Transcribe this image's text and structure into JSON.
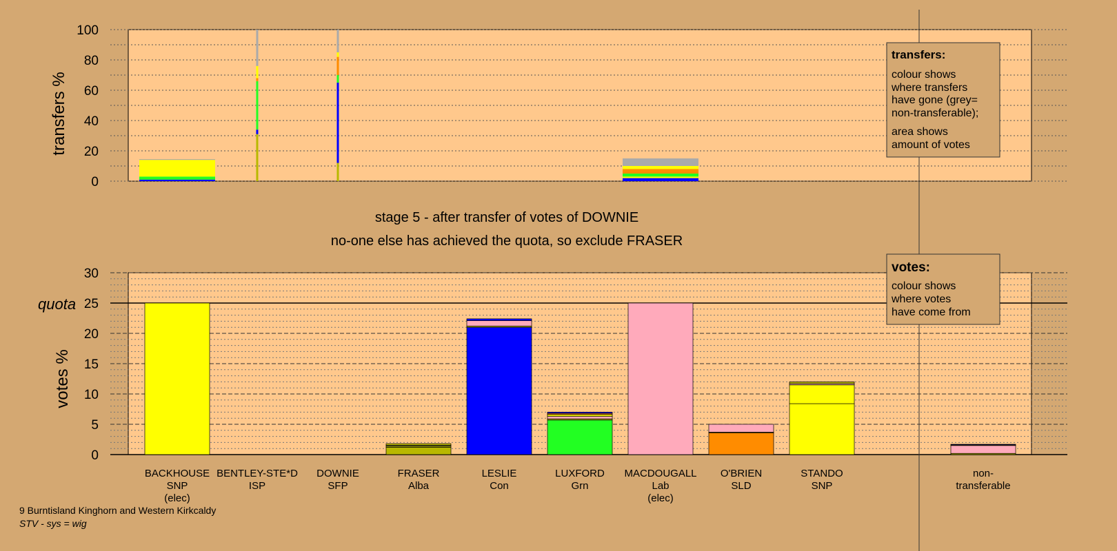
{
  "colors": {
    "background": "#d4a872",
    "plot_bg": "#ffc88c",
    "SNP": "#ffff00",
    "ISP": "#b8b800",
    "SFP": "#b8b800",
    "Alba": "#b8b800",
    "Con": "#0000ff",
    "Grn": "#22ff22",
    "Lab": "#ffaabb",
    "SLD": "#ff8c00",
    "nontransferable": "#aaaaaa"
  },
  "chart_data": [
    {
      "type": "bar",
      "name": "transfers",
      "ylabel": "transfers %",
      "ylim": [
        0,
        100
      ],
      "yticks": [
        "0",
        "20",
        "40",
        "60",
        "80",
        "100"
      ],
      "grid": true,
      "legend": {
        "title": "transfers:",
        "lines1": [
          "colour shows",
          "where transfers",
          "have gone (grey=",
          "non-transferable);"
        ],
        "lines2": [
          "area shows",
          "amount of votes"
        ],
        "placement": "top-right"
      },
      "columns": [
        {
          "candidate": "BACKHOUSE",
          "width_units": 1,
          "segments": [
            {
              "party": "Con",
              "value": 1
            },
            {
              "party": "Grn",
              "value": 2
            },
            {
              "party": "SNP",
              "value": 11
            },
            {
              "party": "nontransferable",
              "value": 0.5
            }
          ]
        },
        {
          "candidate": "BENTLEY-STE*D",
          "width_units": 0.02,
          "segments": [
            {
              "party": "Alba",
              "value": 31
            },
            {
              "party": "Con",
              "value": 3
            },
            {
              "party": "Grn",
              "value": 32
            },
            {
              "party": "SLD",
              "value": 2
            },
            {
              "party": "SNP",
              "value": 8
            },
            {
              "party": "nontransferable",
              "value": 24
            }
          ]
        },
        {
          "candidate": "DOWNIE",
          "width_units": 0.02,
          "segments": [
            {
              "party": "Alba",
              "value": 12
            },
            {
              "party": "Con",
              "value": 53
            },
            {
              "party": "Grn",
              "value": 5
            },
            {
              "party": "SLD",
              "value": 12
            },
            {
              "party": "SNP",
              "value": 3
            },
            {
              "party": "nontransferable",
              "value": 15
            }
          ]
        },
        {
          "candidate": "MACDOUGALL",
          "width_units": 1,
          "segments": [
            {
              "party": "Con",
              "value": 2
            },
            {
              "party": "SNP",
              "value": 1
            },
            {
              "party": "Grn",
              "value": 2
            },
            {
              "party": "SLD",
              "value": 3
            },
            {
              "party": "SNP",
              "value": 2
            },
            {
              "party": "nontransferable",
              "value": 5
            }
          ]
        }
      ]
    },
    {
      "type": "bar",
      "name": "votes",
      "ylabel": "votes %",
      "ylim": [
        0,
        30
      ],
      "yticks": [
        "0",
        "5",
        "10",
        "15",
        "20",
        "25",
        "30"
      ],
      "quota": 25,
      "quota_label": "quota",
      "grid": true,
      "legend": {
        "title": "votes:",
        "lines": [
          "colour shows",
          "where votes",
          "have come from"
        ],
        "placement": "top-right"
      },
      "candidates": [
        {
          "name": "BACKHOUSE",
          "party": "SNP",
          "status": "(elec)",
          "segments": [
            {
              "party": "SNP",
              "value": 25
            }
          ]
        },
        {
          "name": "BENTLEY-STE*D",
          "party": "ISP",
          "status": "",
          "segments": []
        },
        {
          "name": "DOWNIE",
          "party": "SFP",
          "status": "",
          "segments": []
        },
        {
          "name": "FRASER",
          "party": "Alba",
          "status": "",
          "segments": [
            {
              "party": "Alba",
              "value": 1.2
            },
            {
              "party": "ISP",
              "value": 0.2
            },
            {
              "party": "Con",
              "value": 0.1
            },
            {
              "party": "SFP",
              "value": 0.3
            }
          ]
        },
        {
          "name": "LESLIE",
          "party": "Con",
          "status": "",
          "segments": [
            {
              "party": "Con",
              "value": 21
            },
            {
              "party": "SFP",
              "value": 0.2
            },
            {
              "party": "Lab",
              "value": 0.9
            },
            {
              "party": "Con",
              "value": 0.3
            }
          ]
        },
        {
          "name": "LUXFORD",
          "party": "Grn",
          "status": "",
          "segments": [
            {
              "party": "Grn",
              "value": 5.7
            },
            {
              "party": "SFP",
              "value": 0.2
            },
            {
              "party": "Lab",
              "value": 0.4
            },
            {
              "party": "SNP",
              "value": 0.3
            },
            {
              "party": "SLD",
              "value": 0.2
            },
            {
              "party": "Con",
              "value": 0.2
            }
          ]
        },
        {
          "name": "MACDOUGALL",
          "party": "Lab",
          "status": "(elec)",
          "segments": [
            {
              "party": "Lab",
              "value": 25
            }
          ]
        },
        {
          "name": "O'BRIEN",
          "party": "SLD",
          "status": "",
          "segments": [
            {
              "party": "SLD",
              "value": 3.6
            },
            {
              "party": "SFP",
              "value": 0.1
            },
            {
              "party": "Lab",
              "value": 1.3
            }
          ]
        },
        {
          "name": "STANDO",
          "party": "SNP",
          "status": "",
          "segments": [
            {
              "party": "SNP",
              "value": 8.4
            },
            {
              "party": "SNP",
              "value": 3.1
            },
            {
              "party": "Lab",
              "value": 0.2
            },
            {
              "party": "SFP",
              "value": 0.3
            }
          ]
        }
      ],
      "nontransferable": {
        "label1": "non-",
        "label2": "transferable",
        "segments": [
          {
            "party": "SFP",
            "value": 0.2
          },
          {
            "party": "Lab",
            "value": 1.3
          },
          {
            "party": "SNP",
            "value": 0.1
          },
          {
            "party": "Con",
            "value": 0.1
          }
        ]
      }
    }
  ],
  "stage_line1": "stage 5 - after transfer of votes of DOWNIE",
  "stage_line2": "no-one else has achieved the quota, so exclude FRASER",
  "footer_ward": "9 Burntisland Kinghorn and Western Kirkcaldy",
  "footer_system": "STV - sys = wig"
}
